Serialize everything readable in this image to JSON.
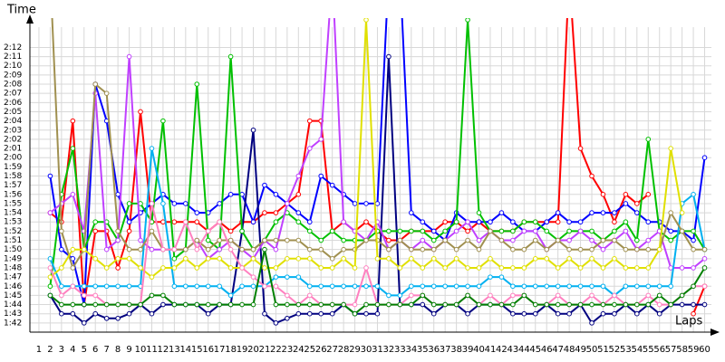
{
  "chart_data": {
    "type": "line",
    "y_label": "Time",
    "x_label": "Laps",
    "grid": true,
    "xlim": [
      0.2,
      60.6
    ],
    "ylim": [
      101,
      135
    ],
    "xticks": [
      1,
      2,
      3,
      4,
      5,
      6,
      7,
      8,
      9,
      10,
      11,
      12,
      13,
      14,
      15,
      16,
      17,
      18,
      19,
      20,
      21,
      22,
      23,
      24,
      25,
      26,
      27,
      28,
      29,
      30,
      31,
      32,
      33,
      34,
      35,
      36,
      37,
      38,
      39,
      40,
      41,
      42,
      43,
      44,
      45,
      46,
      47,
      48,
      49,
      50,
      51,
      52,
      53,
      54,
      55,
      56,
      57,
      58,
      59,
      60
    ],
    "yticks": [
      {
        "value": 102,
        "label": "1:42"
      },
      {
        "value": 103,
        "label": "1:43"
      },
      {
        "value": 104,
        "label": "1:44"
      },
      {
        "value": 105,
        "label": "1:45"
      },
      {
        "value": 106,
        "label": "1:46"
      },
      {
        "value": 107,
        "label": "1:47"
      },
      {
        "value": 108,
        "label": "1:48"
      },
      {
        "value": 109,
        "label": "1:49"
      },
      {
        "value": 110,
        "label": "1:50"
      },
      {
        "value": 111,
        "label": "1:51"
      },
      {
        "value": 112,
        "label": "1:52"
      },
      {
        "value": 113,
        "label": "1:53"
      },
      {
        "value": 114,
        "label": "1:54"
      },
      {
        "value": 115,
        "label": "1:55"
      },
      {
        "value": 116,
        "label": "1:56"
      },
      {
        "value": 117,
        "label": "1:57"
      },
      {
        "value": 118,
        "label": "1:58"
      },
      {
        "value": 119,
        "label": "1:59"
      },
      {
        "value": 120,
        "label": "2:00"
      },
      {
        "value": 121,
        "label": "2:01"
      },
      {
        "value": 122,
        "label": "2:02"
      },
      {
        "value": 123,
        "label": "2:03"
      },
      {
        "value": 124,
        "label": "2:04"
      },
      {
        "value": 125,
        "label": "2:05"
      },
      {
        "value": 126,
        "label": "2:06"
      },
      {
        "value": 127,
        "label": "2:07"
      },
      {
        "value": 128,
        "label": "2:08"
      },
      {
        "value": 129,
        "label": "2:09"
      },
      {
        "value": 130,
        "label": "2:10"
      },
      {
        "value": 131,
        "label": "2:11"
      },
      {
        "value": 132,
        "label": "2:12"
      }
    ],
    "x": [
      2,
      3,
      4,
      5,
      6,
      7,
      8,
      9,
      10,
      11,
      12,
      13,
      14,
      15,
      16,
      17,
      18,
      19,
      20,
      21,
      22,
      23,
      24,
      25,
      26,
      27,
      28,
      29,
      30,
      31,
      32,
      33,
      34,
      35,
      36,
      37,
      38,
      39,
      40,
      41,
      42,
      43,
      44,
      45,
      46,
      47,
      48,
      49,
      50,
      51,
      52,
      53,
      54,
      55,
      56,
      57,
      58,
      59,
      60
    ],
    "series": [
      {
        "color": "#ff0000",
        "values": [
          114,
          113,
          124,
          104,
          112,
          112,
          108,
          112,
          125,
          113,
          113,
          113,
          113,
          113,
          112,
          113,
          112,
          113,
          113,
          114,
          114,
          115,
          116,
          124,
          124,
          112,
          113,
          112,
          113,
          112,
          111,
          111,
          112,
          112,
          112,
          113,
          113,
          112,
          113,
          112,
          112,
          112,
          113,
          113,
          113,
          113,
          140,
          121,
          118,
          116,
          113,
          116,
          115,
          116,
          null,
          null,
          null,
          103,
          106
        ]
      },
      {
        "color": "#0000ff",
        "values": [
          118,
          110,
          109,
          104,
          128,
          124,
          116,
          113,
          114,
          115,
          116,
          115,
          115,
          114,
          114,
          115,
          116,
          116,
          113,
          117,
          116,
          115,
          114,
          113,
          118,
          117,
          116,
          115,
          115,
          115,
          140,
          140,
          114,
          113,
          112,
          111,
          114,
          113,
          113,
          113,
          114,
          113,
          112,
          112,
          113,
          114,
          113,
          113,
          114,
          114,
          114,
          115,
          114,
          113,
          113,
          112,
          112,
          111,
          120
        ]
      },
      {
        "color": "#000080",
        "values": [
          105,
          103,
          103,
          102,
          103,
          102.5,
          102.5,
          103,
          104,
          103,
          104,
          104,
          104,
          104,
          103,
          104,
          104,
          112,
          123,
          103,
          102,
          102.5,
          103,
          103,
          103,
          103,
          104,
          103,
          103,
          103,
          131,
          104,
          104,
          104,
          103,
          104,
          104,
          103,
          104,
          104,
          104,
          103,
          103,
          103,
          104,
          103,
          103,
          104,
          102,
          103,
          103,
          104,
          103,
          104,
          103,
          104,
          104,
          104,
          104
        ]
      },
      {
        "color": "#00c000",
        "values": [
          106,
          116,
          121,
          110,
          113,
          113,
          111,
          115,
          115,
          113,
          124,
          109,
          110,
          128,
          111,
          110,
          131,
          112,
          110,
          111,
          113,
          114,
          113,
          112,
          111,
          112,
          111,
          111,
          111,
          112,
          112,
          112,
          112,
          112,
          111,
          112,
          113,
          135,
          114,
          112,
          112,
          112,
          113,
          113,
          112,
          111,
          112,
          112,
          112,
          111,
          112,
          113,
          111,
          122,
          112,
          111,
          112,
          112,
          110
        ]
      },
      {
        "color": "#c040ff",
        "values": [
          114,
          115,
          116,
          112,
          127,
          110,
          111,
          131,
          111,
          110,
          110,
          110,
          110,
          111,
          109,
          110,
          111,
          110,
          109,
          111,
          110,
          115,
          118,
          121,
          122,
          140,
          113,
          112,
          111,
          113,
          110,
          111,
          110,
          111,
          110,
          111,
          112,
          113,
          111,
          112,
          111,
          111,
          112,
          112,
          110,
          111,
          111,
          112,
          111,
          110,
          111,
          112,
          110,
          111,
          112,
          108,
          108,
          108,
          109
        ]
      },
      {
        "color": "#00b0f0",
        "values": [
          109,
          106,
          106,
          106,
          106,
          106,
          106,
          106,
          106,
          121,
          115,
          106,
          106,
          106,
          106,
          106,
          105,
          106,
          106,
          106,
          107,
          107,
          107,
          106,
          106,
          106,
          106,
          106,
          106,
          106,
          105,
          105,
          106,
          106,
          106,
          106,
          106,
          106,
          106,
          107,
          107,
          106,
          106,
          106,
          106,
          106,
          106,
          106,
          106,
          106,
          105,
          106,
          106,
          106,
          106,
          106,
          115,
          116,
          110
        ]
      },
      {
        "color": "#a09050",
        "values": [
          140,
          112,
          108,
          110,
          128,
          127,
          112,
          110,
          110,
          112,
          110,
          110,
          110,
          111,
          110,
          111,
          111,
          110,
          110,
          111,
          111,
          111,
          111,
          110,
          110,
          109,
          110,
          110,
          111,
          111,
          110,
          111,
          110,
          110,
          110,
          111,
          110,
          111,
          110,
          112,
          111,
          110,
          110,
          111,
          110,
          111,
          110,
          110,
          110,
          111,
          111,
          110,
          110,
          110,
          110,
          114,
          112,
          110,
          110
        ]
      },
      {
        "color": "#e0e000",
        "values": [
          107,
          108,
          110,
          110,
          109,
          108,
          109,
          109,
          108,
          107,
          108,
          108,
          109,
          108,
          109,
          109,
          108,
          108,
          109,
          108,
          108,
          109,
          109,
          109,
          108,
          108,
          109,
          108,
          135,
          109,
          109,
          108,
          109,
          108,
          109,
          108,
          109,
          108,
          108,
          109,
          108,
          108,
          108,
          109,
          109,
          108,
          109,
          108,
          109,
          108,
          109,
          108,
          108,
          108,
          110,
          121,
          114,
          null,
          null
        ]
      },
      {
        "color": "#ff80c0",
        "values": [
          108,
          105,
          106,
          105,
          105,
          104,
          104,
          104,
          104,
          115,
          110,
          110,
          113,
          110,
          112,
          113,
          110,
          108,
          107,
          106,
          106,
          105,
          104,
          105,
          104,
          104,
          104,
          104,
          108,
          104,
          104,
          104,
          105,
          105,
          104,
          104,
          104,
          105,
          104,
          105,
          104,
          105,
          105,
          104,
          104,
          105,
          104,
          104,
          105,
          104,
          105,
          104,
          104,
          105,
          104,
          104,
          105,
          106,
          106
        ]
      },
      {
        "color": "#008000",
        "values": [
          105,
          104,
          104,
          104,
          104,
          104,
          104,
          104,
          104,
          105,
          105,
          104,
          104,
          104,
          104,
          104,
          104,
          104,
          104,
          110,
          104,
          104,
          104,
          104,
          104,
          104,
          104,
          103,
          104,
          104,
          104,
          104,
          104,
          105,
          104,
          104,
          104,
          105,
          104,
          104,
          104,
          104,
          105,
          104,
          104,
          104,
          104,
          104,
          104,
          104,
          104,
          104,
          104,
          104,
          105,
          104,
          105,
          106,
          108
        ]
      }
    ]
  }
}
